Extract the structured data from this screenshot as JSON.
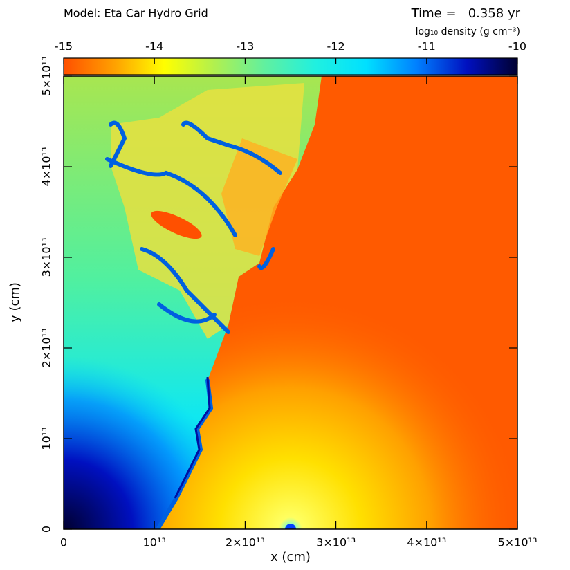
{
  "chart_data": {
    "type": "image",
    "title": "Model: Eta Car Hydro Grid",
    "time_label": "Time =   0.358 yr",
    "colorbar_label": "log₁₀ density (g cm⁻³)",
    "x_label": "x (cm)",
    "y_label": "y (cm)",
    "xlim": [
      0,
      50000000000000
    ],
    "ylim": [
      0,
      50000000000000
    ],
    "xticks": [
      0,
      {
        "value": 10000000000000,
        "label": "10¹³"
      },
      {
        "value": 20000000000000,
        "label": "2×10¹³"
      },
      {
        "value": 30000000000000,
        "label": "3×10¹³"
      },
      {
        "value": 40000000000000,
        "label": "4×10¹³"
      },
      {
        "value": 50000000000000,
        "label": "5×10¹³"
      }
    ],
    "yticks": [
      0,
      {
        "value": 10000000000000,
        "label": "10¹³"
      },
      {
        "value": 20000000000000,
        "label": "2×10¹³"
      },
      {
        "value": 30000000000000,
        "label": "3×10¹³"
      },
      {
        "value": 40000000000000,
        "label": "4×10¹³"
      },
      {
        "value": 50000000000000,
        "label": "5×10¹³"
      }
    ],
    "colorbar_lim": [
      -15,
      -10
    ],
    "colorbar_ticks": [
      -15,
      -14,
      -13,
      -12,
      -11,
      -10
    ],
    "colormap": [
      "#ff5000",
      "#ffa000",
      "#ffff00",
      "#b0f050",
      "#60f0a0",
      "#20f0e0",
      "#00e0ff",
      "#0080ff",
      "#0010c0",
      "#000030"
    ]
  }
}
